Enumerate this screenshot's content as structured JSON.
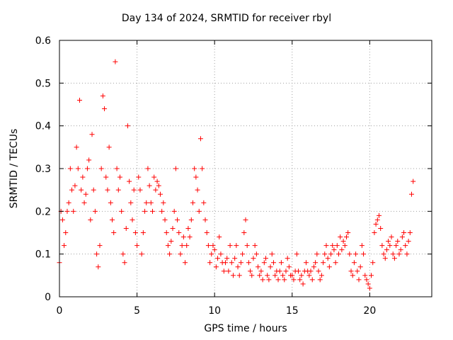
{
  "chart_data": {
    "type": "scatter",
    "title": "Day 134 of 2024, SRMTID for receiver rbyl",
    "xlabel": "GPS time / hours",
    "ylabel": "SRMTID / TECUs",
    "xlim": [
      0,
      24
    ],
    "ylim": [
      0,
      0.6
    ],
    "x_ticks": [
      0,
      5,
      10,
      15,
      20
    ],
    "y_ticks": [
      0,
      0.1,
      0.2,
      0.3,
      0.4,
      0.5,
      0.6
    ],
    "x_tick_labels": [
      "0",
      "5",
      "10",
      "15",
      "20"
    ],
    "y_tick_labels": [
      "0",
      "0.1",
      "0.2",
      "0.3",
      "0.4",
      "0.5",
      "0.6"
    ],
    "grid": true,
    "marker": "+",
    "color": "#ff0000",
    "series": [
      {
        "name": "SRMTID",
        "x": [
          0.0,
          0.1,
          0.2,
          0.3,
          0.4,
          0.5,
          0.6,
          0.7,
          0.8,
          0.9,
          1.0,
          1.1,
          1.2,
          1.3,
          1.4,
          1.5,
          1.6,
          1.7,
          1.8,
          1.9,
          2.0,
          2.1,
          2.2,
          2.3,
          2.4,
          2.5,
          2.6,
          2.7,
          2.8,
          2.9,
          3.0,
          3.1,
          3.2,
          3.3,
          3.4,
          3.5,
          3.6,
          3.7,
          3.8,
          3.9,
          4.0,
          4.1,
          4.2,
          4.3,
          4.4,
          4.5,
          4.6,
          4.7,
          4.8,
          4.9,
          5.0,
          5.1,
          5.2,
          5.3,
          5.4,
          5.5,
          5.6,
          5.7,
          5.8,
          5.9,
          6.0,
          6.1,
          6.2,
          6.3,
          6.4,
          6.5,
          6.6,
          6.7,
          6.8,
          6.9,
          7.0,
          7.1,
          7.2,
          7.3,
          7.4,
          7.5,
          7.6,
          7.7,
          7.8,
          7.9,
          8.0,
          8.1,
          8.2,
          8.3,
          8.4,
          8.5,
          8.6,
          8.7,
          8.8,
          8.9,
          9.0,
          9.1,
          9.2,
          9.3,
          9.4,
          9.5,
          9.6,
          9.7,
          9.8,
          9.9,
          10.0,
          10.1,
          10.2,
          10.3,
          10.4,
          10.5,
          10.6,
          10.7,
          10.8,
          10.9,
          11.0,
          11.1,
          11.2,
          11.3,
          11.4,
          11.5,
          11.6,
          11.7,
          11.8,
          11.9,
          12.0,
          12.1,
          12.2,
          12.3,
          12.4,
          12.5,
          12.6,
          12.7,
          12.8,
          12.9,
          13.0,
          13.1,
          13.2,
          13.3,
          13.4,
          13.5,
          13.6,
          13.7,
          13.8,
          13.9,
          14.0,
          14.1,
          14.2,
          14.3,
          14.4,
          14.5,
          14.6,
          14.7,
          14.8,
          14.9,
          15.0,
          15.1,
          15.2,
          15.3,
          15.4,
          15.5,
          15.6,
          15.7,
          15.8,
          15.9,
          16.0,
          16.1,
          16.2,
          16.3,
          16.4,
          16.5,
          16.6,
          16.7,
          16.8,
          16.9,
          17.0,
          17.1,
          17.2,
          17.3,
          17.4,
          17.5,
          17.6,
          17.7,
          17.8,
          17.9,
          18.0,
          18.1,
          18.2,
          18.3,
          18.4,
          18.5,
          18.6,
          18.7,
          18.8,
          18.9,
          19.0,
          19.1,
          19.2,
          19.3,
          19.4,
          19.5,
          19.6,
          19.7,
          19.8,
          19.9,
          20.0,
          20.1,
          20.2,
          20.3,
          20.4,
          20.5,
          20.6,
          20.7,
          20.8,
          20.9,
          21.0,
          21.1,
          21.2,
          21.3,
          21.4,
          21.5,
          21.6,
          21.7,
          21.8,
          21.9,
          22.0,
          22.1,
          22.2,
          22.3,
          22.4,
          22.5,
          22.6,
          22.7,
          22.8
        ],
        "y": [
          0.08,
          0.2,
          0.18,
          0.12,
          0.15,
          0.2,
          0.22,
          0.3,
          0.25,
          0.2,
          0.26,
          0.35,
          0.3,
          0.46,
          0.25,
          0.28,
          0.22,
          0.24,
          0.3,
          0.32,
          0.18,
          0.38,
          0.25,
          0.2,
          0.1,
          0.07,
          0.12,
          0.3,
          0.47,
          0.44,
          0.28,
          0.25,
          0.35,
          0.22,
          0.18,
          0.15,
          0.55,
          0.3,
          0.25,
          0.28,
          0.2,
          0.1,
          0.08,
          0.16,
          0.4,
          0.27,
          0.22,
          0.18,
          0.25,
          0.15,
          0.12,
          0.28,
          0.25,
          0.1,
          0.15,
          0.2,
          0.22,
          0.3,
          0.26,
          0.22,
          0.2,
          0.28,
          0.25,
          0.27,
          0.26,
          0.24,
          0.2,
          0.22,
          0.18,
          0.15,
          0.12,
          0.1,
          0.13,
          0.16,
          0.2,
          0.3,
          0.18,
          0.15,
          0.1,
          0.12,
          0.14,
          0.08,
          0.12,
          0.16,
          0.14,
          0.18,
          0.22,
          0.3,
          0.28,
          0.25,
          0.2,
          0.37,
          0.3,
          0.22,
          0.18,
          0.15,
          0.12,
          0.08,
          0.1,
          0.12,
          0.11,
          0.07,
          0.09,
          0.14,
          0.1,
          0.08,
          0.06,
          0.08,
          0.09,
          0.06,
          0.12,
          0.08,
          0.05,
          0.09,
          0.12,
          0.07,
          0.05,
          0.08,
          0.1,
          0.15,
          0.18,
          0.12,
          0.08,
          0.06,
          0.05,
          0.09,
          0.12,
          0.1,
          0.07,
          0.05,
          0.06,
          0.04,
          0.08,
          0.09,
          0.05,
          0.04,
          0.07,
          0.1,
          0.08,
          0.05,
          0.06,
          0.04,
          0.06,
          0.08,
          0.05,
          0.04,
          0.06,
          0.09,
          0.07,
          0.05,
          0.05,
          0.04,
          0.06,
          0.1,
          0.06,
          0.04,
          0.05,
          0.03,
          0.06,
          0.08,
          0.06,
          0.05,
          0.06,
          0.04,
          0.07,
          0.08,
          0.1,
          0.06,
          0.04,
          0.05,
          0.08,
          0.1,
          0.12,
          0.09,
          0.07,
          0.1,
          0.12,
          0.11,
          0.08,
          0.12,
          0.1,
          0.14,
          0.11,
          0.13,
          0.12,
          0.14,
          0.15,
          0.1,
          0.06,
          0.05,
          0.08,
          0.1,
          0.06,
          0.04,
          0.07,
          0.12,
          0.1,
          0.05,
          0.04,
          0.03,
          0.02,
          0.05,
          0.08,
          0.15,
          0.17,
          0.18,
          0.19,
          0.16,
          0.12,
          0.1,
          0.09,
          0.11,
          0.13,
          0.12,
          0.14,
          0.1,
          0.09,
          0.12,
          0.13,
          0.1,
          0.11,
          0.14,
          0.15,
          0.12,
          0.1,
          0.13,
          0.15,
          0.24,
          0.27
        ]
      }
    ]
  }
}
